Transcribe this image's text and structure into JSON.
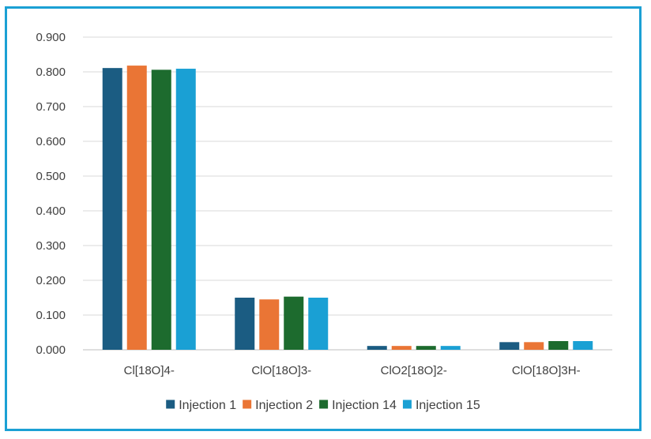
{
  "chart_data": {
    "type": "bar",
    "categories": [
      "Cl[18O]4-",
      "ClO[18O]3-",
      "ClO2[18O]2-",
      "ClO[18O]3H-"
    ],
    "series": [
      {
        "name": "Injection 1",
        "color": "#1B5C82",
        "values": [
          0.811,
          0.15,
          0.011,
          0.022
        ]
      },
      {
        "name": "Injection 2",
        "color": "#EA7535",
        "values": [
          0.818,
          0.145,
          0.011,
          0.022
        ]
      },
      {
        "name": "Injection 14",
        "color": "#1D6B2E",
        "values": [
          0.806,
          0.153,
          0.011,
          0.025
        ]
      },
      {
        "name": "Injection 15",
        "color": "#1AA0D4",
        "values": [
          0.809,
          0.15,
          0.011,
          0.025
        ]
      }
    ],
    "ylim": [
      0,
      0.9
    ],
    "yticks": [
      0.0,
      0.1,
      0.2,
      0.3,
      0.4,
      0.5,
      0.6,
      0.7,
      0.8,
      0.9
    ],
    "ytick_labels": [
      "0.000",
      "0.100",
      "0.200",
      "0.300",
      "0.400",
      "0.500",
      "0.600",
      "0.700",
      "0.800",
      "0.900"
    ],
    "grid": true,
    "legend_position": "bottom",
    "border_color": "#1BA0D4"
  }
}
